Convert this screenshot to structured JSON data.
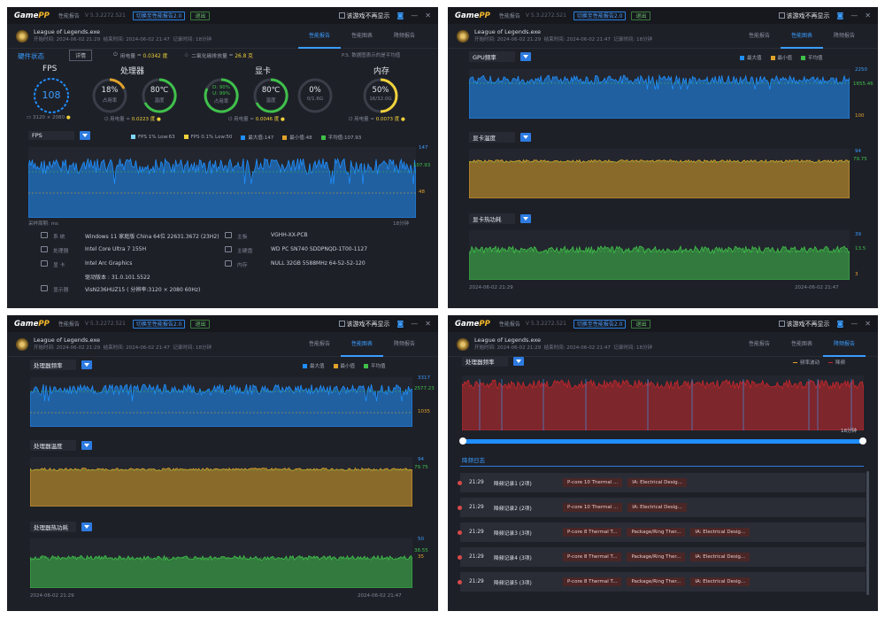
{
  "app": {
    "logo_a": "Game",
    "logo_b": "PP",
    "report_label": "性能报告",
    "version": "V 5.3.2272.521",
    "switch_label": "切换至性能报告2.0",
    "exit_label": "退出",
    "no_show_label": "该游戏不再显示",
    "min": "—",
    "close": "✕"
  },
  "app_w4": {
    "version": "V 5.3.2272.521"
  },
  "game": {
    "name": "League of Legends.exe",
    "start": "开始时间: 2024-06-02 21:29",
    "end": "结束时间: 2024-06-02 21:47",
    "rec": "记录时间: 18分钟"
  },
  "tabs": [
    "性能报告",
    "性能图表",
    "降频报告"
  ],
  "colors": {
    "blue": "#1f8fff",
    "accent": "#3a9dff",
    "orange": "#e0a32a",
    "green": "#3fc04a",
    "red": "#c8262b",
    "yellow": "#f0d23a"
  },
  "w1": {
    "hw_title": "硬件状态",
    "detail_btn": "详情",
    "power_label": "用电量",
    "power_val": "0.0342 度",
    "co2_label": "二氧化碳排放量",
    "co2_val": "26.8 克",
    "ps_note": "P.S. 数据图表示的是平均值",
    "fps_title": "FPS",
    "fps_val": "108",
    "res": "3120 × 2080",
    "cpu_title": "处理器",
    "cpu_usage": "18%",
    "cpu_usage_lbl": "占用率",
    "cpu_temp": "80℃",
    "cpu_temp_lbl": "温度",
    "cpu_power": "0.0223 度",
    "gpu_title": "显卡",
    "gpu_l1": "D: 90%",
    "gpu_l2": "U: 99%",
    "gpu_l3": "占用率",
    "gpu_temp": "80℃",
    "gpu_temp_lbl": "温度",
    "gpu_vram": "0%",
    "gpu_vram_lbl": "0/1.6G",
    "gpu_power": "0.0046 度",
    "mem_title": "内存",
    "mem_val": "50%",
    "mem_sub": "16/32.0G",
    "mem_power": "0.0073 度",
    "power_word": "用电量 = ",
    "chart_sel": "FPS",
    "legend": [
      "FPS 1% Low:63",
      "FPS 0.1% Low:50",
      "最大值:147",
      "最小值:48",
      "平均值:107.93"
    ],
    "ticks": {
      "max": "147",
      "avg": "107.93",
      "min": "48"
    },
    "sample": "采样周期: ms",
    "dur": "18分钟",
    "sys": [
      {
        "lab": "系  统",
        "val": "Windows 11 家庭版 China 64位 22631.3672 (23H2)"
      },
      {
        "lab": "处理器",
        "val": "Intel Core Ultra 7 155H"
      },
      {
        "lab": "显  卡",
        "val": "Intel Arc Graphics"
      },
      {
        "lab": "",
        "val": "驱动版本 : 31.0.101.5522"
      },
      {
        "lab": "显示器",
        "val": "VisN236HUZ15 ( 分辨率:3120 × 2080 60Hz)"
      }
    ],
    "sys2": [
      {
        "lab": "主板",
        "val": "VGHH-XX-PCB"
      },
      {
        "lab": "主硬盘",
        "val": "WD PC SN740 SDDPNQD-1T00-1127"
      },
      {
        "lab": "内存",
        "val": "NULL 32GB 5588MHz 64-52-52-120"
      }
    ]
  },
  "w2": {
    "c1": "GPU频率",
    "c2": "显卡温度",
    "c3": "显卡热功耗",
    "legend": [
      "最大值",
      "最小值",
      "平均值"
    ],
    "t1": {
      "max": "2250",
      "avg": "1655.46",
      "min": "100"
    },
    "t2": {
      "max": "94",
      "avg": "79.75"
    },
    "t3": {
      "max": "39",
      "avg": "13.5",
      "min": "3"
    },
    "x0": "2024-06-02 21:29",
    "x1": "2024-06-02 21:47"
  },
  "w3": {
    "c1": "处理器频率",
    "c2": "处理器温度",
    "c3": "处理器热功耗",
    "legend": [
      "最大值",
      "最小值",
      "平均值"
    ],
    "t1": {
      "max": "3317",
      "avg": "2577.23",
      "min": "1035"
    },
    "t2": {
      "max": "94",
      "avg": "79.75"
    },
    "t3": {
      "max": "50",
      "avg": "38.55",
      "min": "35"
    },
    "x0": "2024-06-02 21:29",
    "x1": "2024-06-02 21:47"
  },
  "w4": {
    "c1": "处理器频率",
    "legend": [
      "频率波动",
      "降频"
    ],
    "dur": "18分钟",
    "log_title": "降频日志",
    "rows": [
      {
        "t": "21:29",
        "name": "降频记录1 (2项)",
        "tags": [
          "P-core 10 Thermal ...",
          "IA: Electrical Desig..."
        ]
      },
      {
        "t": "21:29",
        "name": "降频记录2 (2项)",
        "tags": [
          "P-core 10 Thermal ...",
          "IA: Electrical Desig..."
        ]
      },
      {
        "t": "21:29",
        "name": "降频记录3 (3项)",
        "tags": [
          "P-core 8 Thermal T...",
          "Package/Ring Ther...",
          "IA: Electrical Desig..."
        ]
      },
      {
        "t": "21:29",
        "name": "降频记录4 (3项)",
        "tags": [
          "P-core 8 Thermal T...",
          "Package/Ring Ther...",
          "IA: Electrical Desig..."
        ]
      },
      {
        "t": "21:29",
        "name": "降频记录5 (3项)",
        "tags": [
          "P-core 8 Thermal T...",
          "Package/Ring Ther...",
          "IA: Electrical Desig..."
        ]
      }
    ]
  }
}
